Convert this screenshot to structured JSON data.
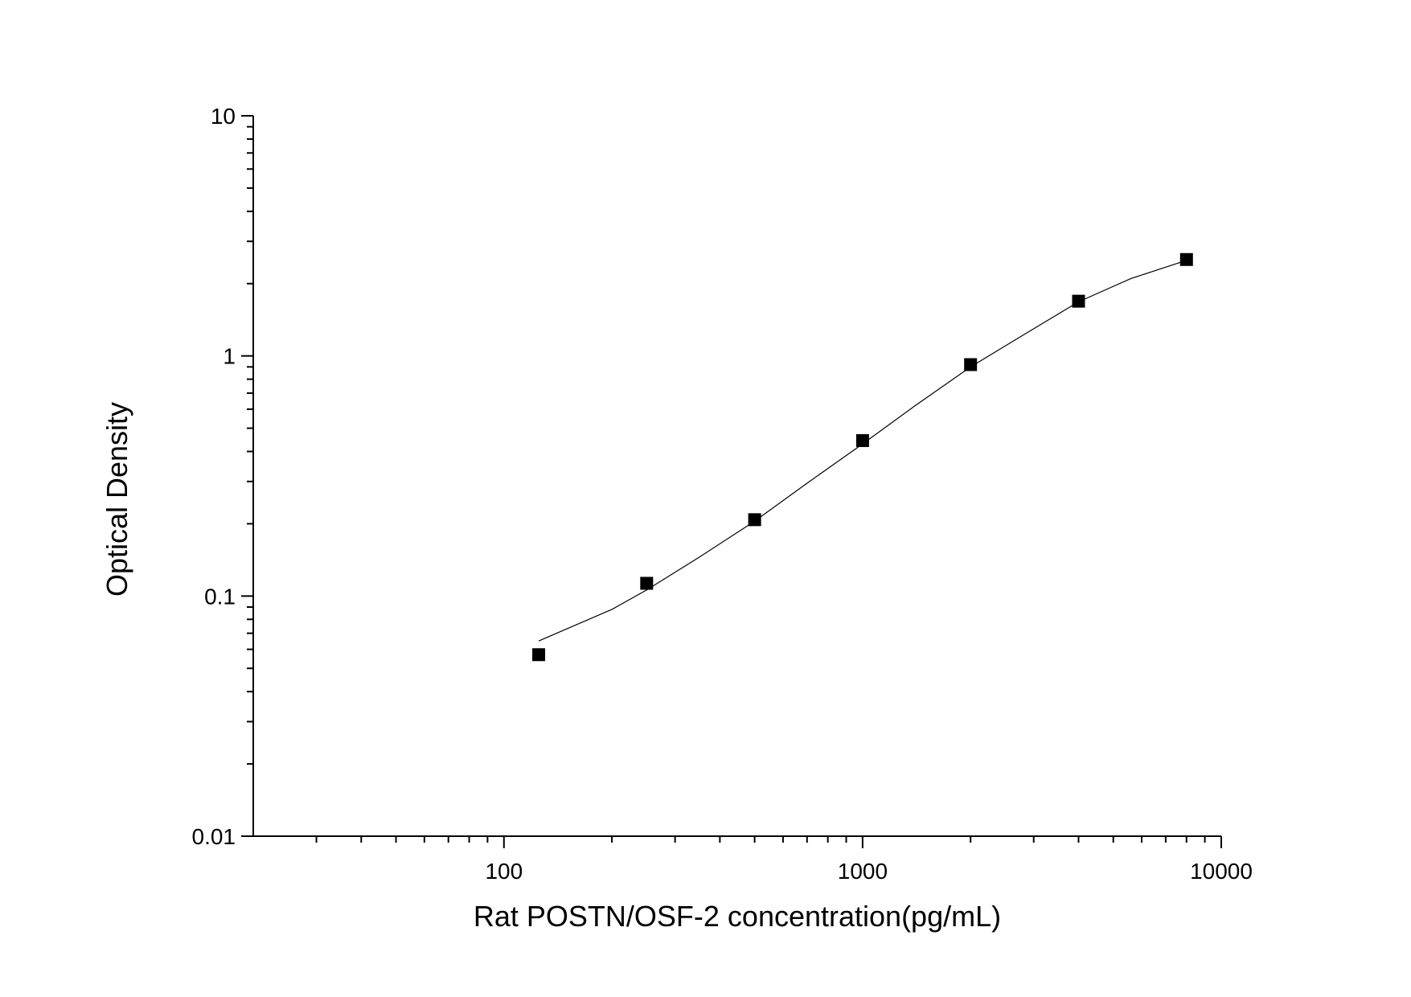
{
  "chart_data": {
    "type": "scatter",
    "x_label": "Rat POSTN/OSF-2 concentration(pg/mL)",
    "y_label": "Optical Density",
    "xlog": true,
    "ylog": true,
    "xlim": [
      20,
      10000
    ],
    "ylim": [
      0.01,
      10
    ],
    "xticks": [
      100,
      1000,
      10000
    ],
    "yticks": [
      0.01,
      0.1,
      1,
      10
    ],
    "xticks_minor": [
      30,
      40,
      50,
      60,
      70,
      80,
      90,
      200,
      300,
      400,
      500,
      600,
      700,
      800,
      900,
      2000,
      3000,
      4000,
      5000,
      6000,
      7000,
      8000,
      9000
    ],
    "yticks_minor": [
      0.02,
      0.03,
      0.04,
      0.05,
      0.06,
      0.07,
      0.08,
      0.09,
      0.2,
      0.3,
      0.4,
      0.5,
      0.6,
      0.7,
      0.8,
      0.9,
      2,
      3,
      4,
      5,
      6,
      7,
      8,
      9
    ],
    "color": "#000000",
    "x": [
      125,
      250,
      500,
      1000,
      2000,
      4000,
      8000
    ],
    "values": [
      0.057,
      0.113,
      0.208,
      0.444,
      0.92,
      1.69,
      2.52
    ],
    "curve": {
      "x": [
        125,
        200,
        250,
        350,
        500,
        700,
        1000,
        1400,
        2000,
        2800,
        4000,
        5600,
        8000
      ],
      "values": [
        0.065,
        0.088,
        0.106,
        0.145,
        0.205,
        0.295,
        0.43,
        0.62,
        0.9,
        1.22,
        1.68,
        2.1,
        2.5
      ]
    }
  }
}
